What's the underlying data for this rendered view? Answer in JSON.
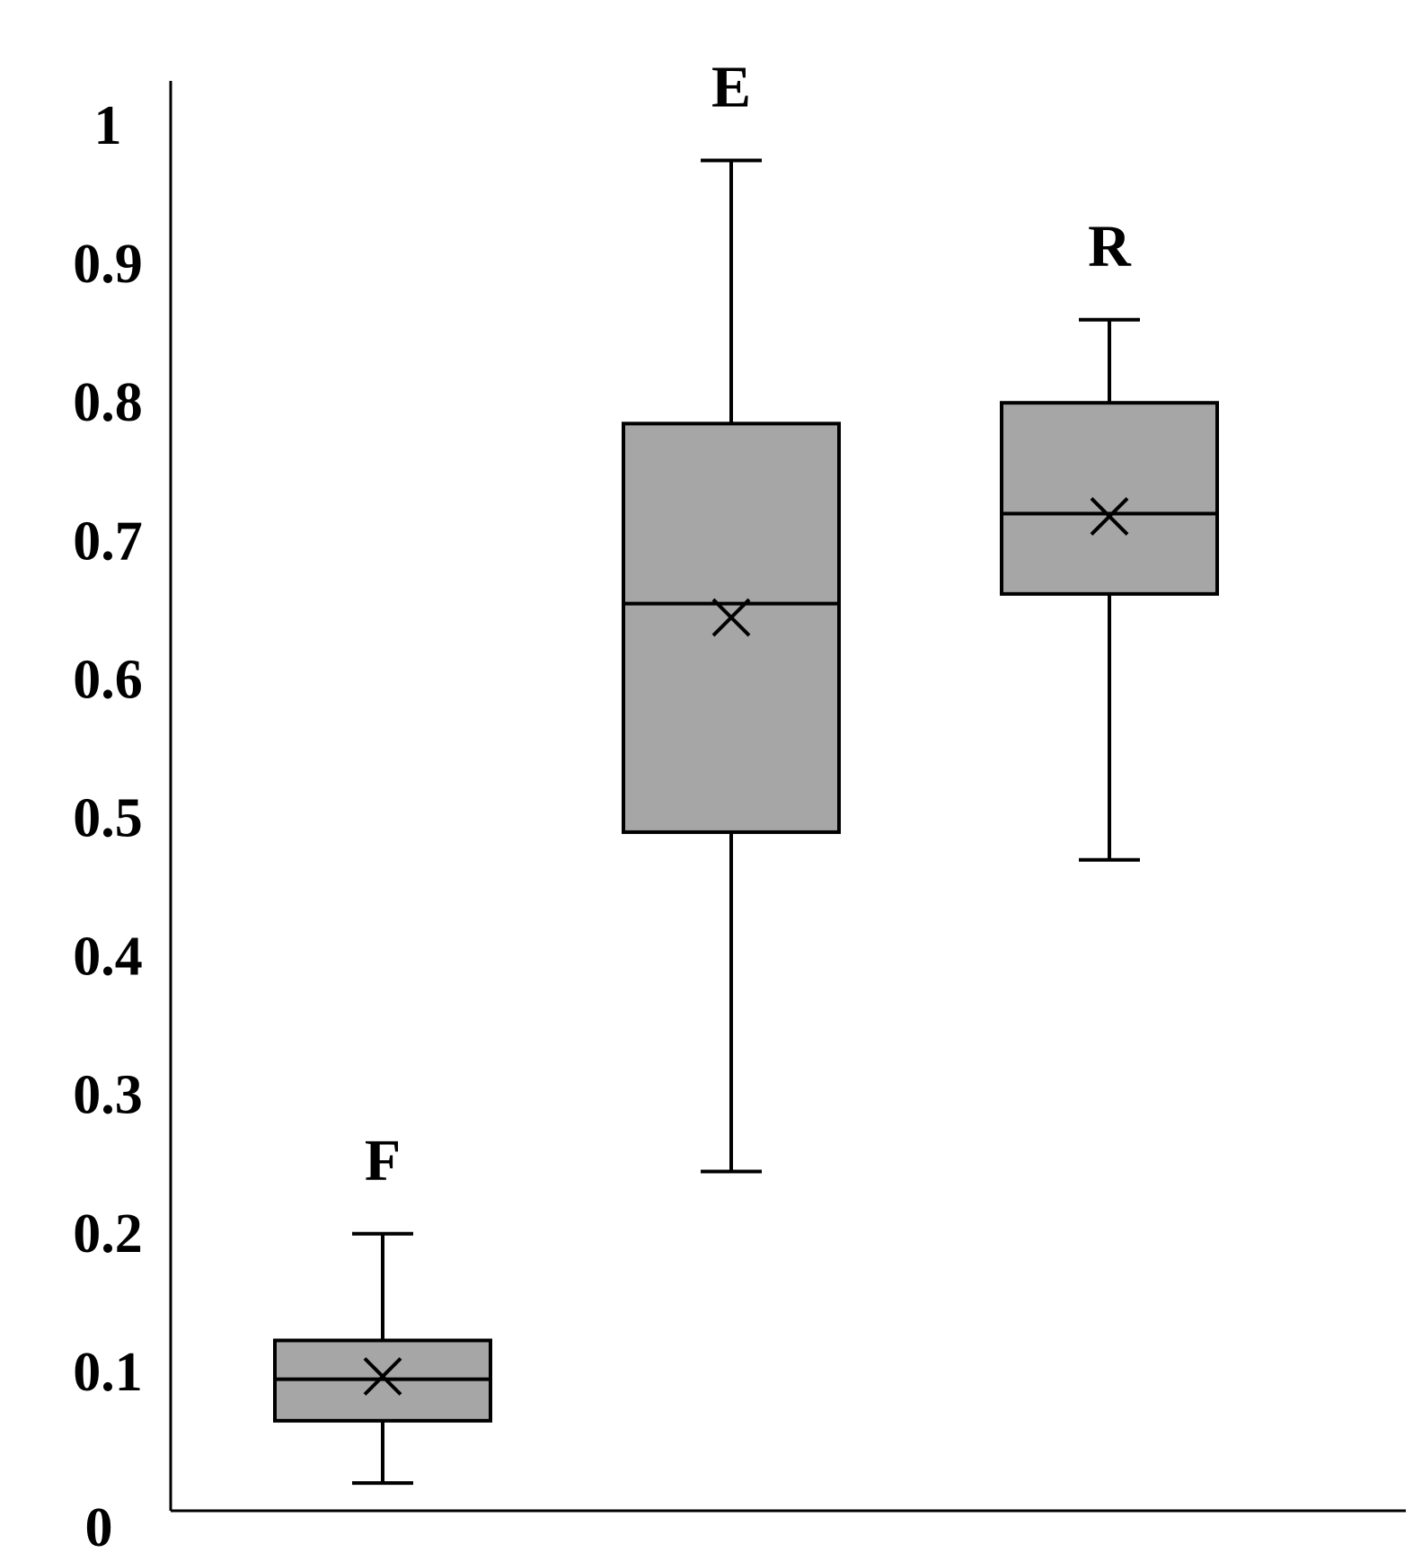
{
  "chart_data": {
    "type": "box",
    "title": "",
    "xlabel": "",
    "ylabel": "",
    "ylim": [
      0,
      1
    ],
    "yticks": [
      {
        "value": 0,
        "label": "0"
      },
      {
        "value": 0.1,
        "label": "0.1"
      },
      {
        "value": 0.2,
        "label": "0.2"
      },
      {
        "value": 0.3,
        "label": "0.3"
      },
      {
        "value": 0.4,
        "label": "0.4"
      },
      {
        "value": 0.5,
        "label": "0.5"
      },
      {
        "value": 0.6,
        "label": "0.6"
      },
      {
        "value": 0.7,
        "label": "0.7"
      },
      {
        "value": 0.8,
        "label": "0.8"
      },
      {
        "value": 0.9,
        "label": "0.9"
      },
      {
        "value": 1,
        "label": "1"
      }
    ],
    "grid": false,
    "legend": "none",
    "boxes": [
      {
        "label": "F",
        "min": 0.02,
        "q1": 0.065,
        "median": 0.095,
        "q3": 0.123,
        "max": 0.2,
        "mean": 0.097
      },
      {
        "label": "E",
        "min": 0.245,
        "q1": 0.49,
        "median": 0.655,
        "q3": 0.785,
        "max": 0.975,
        "mean": 0.645
      },
      {
        "label": "R",
        "min": 0.47,
        "q1": 0.662,
        "median": 0.72,
        "q3": 0.8,
        "max": 0.86,
        "mean": 0.718
      }
    ],
    "colors": {
      "box_fill": "#a6a6a6",
      "line": "#000000"
    }
  }
}
